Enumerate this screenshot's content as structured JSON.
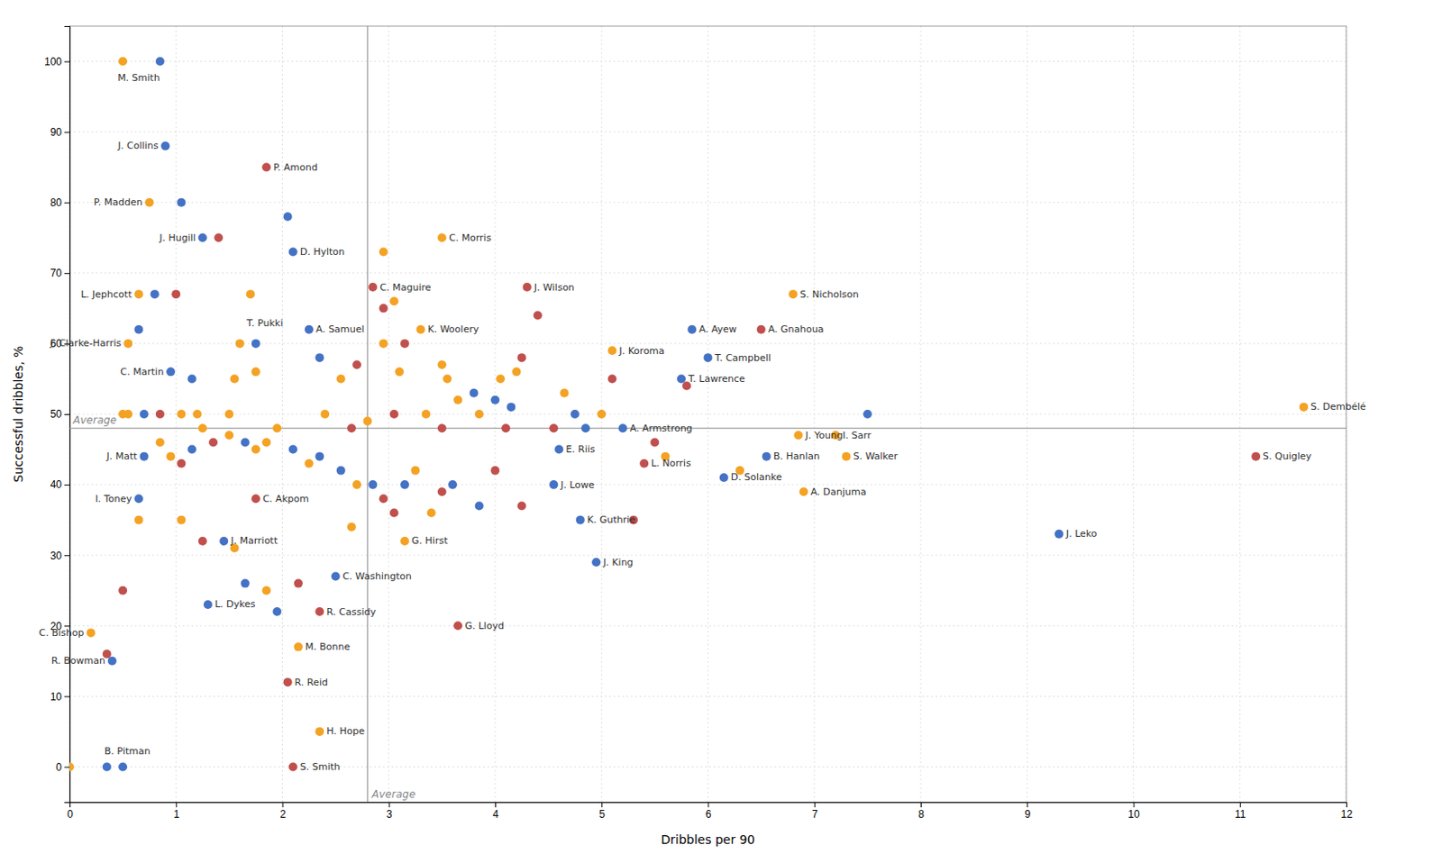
{
  "chart_data": {
    "type": "scatter",
    "xlabel": "Dribbles per 90",
    "ylabel": "Successful dribbles, %",
    "xlim": [
      0,
      12
    ],
    "ylim": [
      -5,
      105
    ],
    "xticks": [
      0,
      1,
      2,
      3,
      4,
      5,
      6,
      7,
      8,
      9,
      10,
      11,
      12
    ],
    "yticks": [
      0,
      10,
      20,
      30,
      40,
      50,
      60,
      70,
      80,
      90,
      100
    ],
    "grid": true,
    "reference_lines": [
      {
        "axis": "y",
        "value": 48,
        "label": "Average"
      },
      {
        "axis": "x",
        "value": 2.8,
        "label": "Average"
      }
    ],
    "x": [
      0.5,
      0.85,
      0.9,
      1.85,
      0.75,
      1.05,
      1.25,
      1.4,
      2.05,
      2.1,
      3.5,
      2.95,
      0.65,
      0.8,
      1.0,
      1.7,
      2.85,
      2.95,
      3.05,
      4.3,
      4.4,
      6.8,
      2.25,
      2.35,
      2.55,
      2.7,
      0.55,
      0.65,
      1.6,
      1.75,
      2.95,
      3.1,
      3.3,
      3.15,
      5.85,
      6.5,
      5.1,
      5.1,
      6.0,
      0.95,
      1.15,
      1.55,
      1.75,
      5.75,
      5.8,
      0.5,
      0.55,
      0.7,
      0.85,
      1.05,
      1.2,
      1.5,
      2.4,
      2.65,
      2.8,
      3.05,
      3.35,
      3.5,
      3.55,
      3.5,
      3.65,
      3.8,
      3.85,
      4.0,
      4.05,
      4.1,
      4.15,
      4.2,
      4.25,
      4.55,
      4.65,
      4.75,
      4.85,
      5.0,
      5.2,
      6.85,
      7.2,
      7.5,
      11.6,
      0.85,
      0.95,
      1.05,
      1.15,
      1.25,
      1.35,
      1.5,
      1.65,
      1.75,
      1.85,
      1.95,
      2.1,
      2.25,
      2.35,
      2.55,
      2.7,
      2.85,
      2.95,
      3.05,
      3.15,
      3.25,
      3.4,
      3.5,
      3.6,
      3.85,
      4.0,
      4.25,
      4.6,
      6.55,
      6.3,
      7.3,
      11.15,
      5.4,
      5.5,
      5.6,
      0.7,
      4.55,
      6.9,
      6.15,
      0.65,
      0.65,
      1.75,
      1.05,
      5.3,
      4.8,
      1.45,
      1.25,
      1.55,
      2.65,
      3.15,
      9.3,
      2.5,
      4.95,
      1.3,
      0.5,
      1.65,
      1.85,
      2.35,
      1.95,
      0.2,
      0.35,
      3.65,
      2.15,
      2.15,
      0.4,
      2.05,
      2.35,
      0.0,
      0.35,
      0.5,
      2.1
    ],
    "values": [
      100,
      100,
      88,
      85,
      80,
      80,
      75,
      75,
      78,
      73,
      75,
      73,
      67,
      67,
      67,
      67,
      68,
      65,
      66,
      68,
      64,
      67,
      62,
      58,
      55,
      57,
      60,
      62,
      60,
      60,
      60,
      56,
      62,
      60,
      62,
      62,
      59,
      55,
      58,
      56,
      55,
      55,
      56,
      55,
      54,
      50,
      50,
      50,
      50,
      50,
      50,
      50,
      50,
      48,
      49,
      50,
      50,
      57,
      55,
      48,
      52,
      53,
      50,
      52,
      55,
      48,
      51,
      56,
      58,
      48,
      53,
      50,
      48,
      50,
      48,
      47,
      47,
      50,
      51,
      46,
      44,
      43,
      45,
      48,
      46,
      47,
      46,
      45,
      46,
      48,
      45,
      43,
      44,
      42,
      40,
      40,
      38,
      36,
      40,
      42,
      36,
      39,
      40,
      37,
      42,
      37,
      45,
      44,
      42,
      44,
      44,
      43,
      46,
      44,
      44,
      40,
      39,
      41,
      38,
      35,
      38,
      35,
      35,
      35,
      32,
      32,
      31,
      34,
      32,
      33,
      27,
      29,
      23,
      25,
      26,
      25,
      22,
      22,
      19,
      16,
      20,
      26,
      17,
      15,
      12,
      5,
      0,
      0,
      0,
      0
    ],
    "colors": [
      "#F4A223",
      "#4472C4",
      "#4472C4",
      "#C0504D",
      "#F4A223",
      "#4472C4",
      "#4472C4",
      "#C0504D",
      "#4472C4",
      "#4472C4",
      "#F4A223",
      "#F4A223",
      "#F4A223",
      "#4472C4",
      "#C0504D",
      "#F4A223",
      "#C0504D",
      "#C0504D",
      "#F4A223",
      "#C0504D",
      "#C0504D",
      "#F4A223",
      "#4472C4",
      "#4472C4",
      "#F4A223",
      "#C0504D",
      "#F4A223",
      "#4472C4",
      "#F4A223",
      "#4472C4",
      "#F4A223",
      "#F4A223",
      "#F4A223",
      "#C0504D",
      "#4472C4",
      "#C0504D",
      "#F4A223",
      "#C0504D",
      "#4472C4",
      "#4472C4",
      "#4472C4",
      "#F4A223",
      "#F4A223",
      "#4472C4",
      "#C0504D",
      "#F4A223",
      "#F4A223",
      "#4472C4",
      "#C0504D",
      "#F4A223",
      "#F4A223",
      "#F4A223",
      "#F4A223",
      "#C0504D",
      "#F4A223",
      "#C0504D",
      "#F4A223",
      "#F4A223",
      "#F4A223",
      "#C0504D",
      "#F4A223",
      "#4472C4",
      "#F4A223",
      "#4472C4",
      "#F4A223",
      "#C0504D",
      "#4472C4",
      "#F4A223",
      "#C0504D",
      "#C0504D",
      "#F4A223",
      "#4472C4",
      "#4472C4",
      "#F4A223",
      "#4472C4",
      "#F4A223",
      "#F4A223",
      "#4472C4",
      "#F4A223",
      "#F4A223",
      "#F4A223",
      "#C0504D",
      "#4472C4",
      "#F4A223",
      "#C0504D",
      "#F4A223",
      "#4472C4",
      "#F4A223",
      "#F4A223",
      "#F4A223",
      "#4472C4",
      "#F4A223",
      "#4472C4",
      "#4472C4",
      "#F4A223",
      "#4472C4",
      "#C0504D",
      "#C0504D",
      "#4472C4",
      "#F4A223",
      "#F4A223",
      "#C0504D",
      "#4472C4",
      "#4472C4",
      "#C0504D",
      "#C0504D",
      "#4472C4",
      "#4472C4",
      "#F4A223",
      "#F4A223",
      "#C0504D",
      "#C0504D",
      "#C0504D",
      "#F4A223",
      "#4472C4",
      "#4472C4",
      "#F4A223",
      "#4472C4",
      "#4472C4",
      "#F4A223",
      "#C0504D",
      "#F4A223",
      "#C0504D",
      "#4472C4",
      "#4472C4",
      "#C0504D",
      "#F4A223",
      "#F4A223",
      "#F4A223",
      "#4472C4",
      "#4472C4",
      "#4472C4",
      "#4472C4",
      "#C0504D",
      "#4472C4",
      "#F4A223",
      "#C0504D",
      "#4472C4",
      "#F4A223",
      "#C0504D",
      "#C0504D",
      "#C0504D",
      "#F4A223",
      "#4472C4",
      "#C0504D",
      "#F4A223",
      "#F4A223",
      "#4472C4",
      "#4472C4",
      "#C0504D"
    ],
    "labels": [
      "M. Smith",
      null,
      "J. Collins",
      "P. Amond",
      "P. Madden",
      null,
      "J. Hugill",
      null,
      null,
      "D. Hylton",
      "C. Morris",
      null,
      "L. Jephcott",
      null,
      null,
      null,
      "C. Maguire",
      null,
      null,
      "J. Wilson",
      null,
      "S. Nicholson",
      "A. Samuel",
      null,
      null,
      null,
      "J. Clarke-Harris",
      null,
      "T. Pukki",
      null,
      null,
      null,
      "K. Woolery",
      null,
      "A. Ayew",
      "A. Gnahoua",
      "J. Koroma",
      null,
      "T. Campbell",
      "C. Martin",
      null,
      null,
      null,
      "T. Lawrence",
      null,
      null,
      null,
      null,
      null,
      null,
      null,
      null,
      null,
      null,
      null,
      null,
      null,
      null,
      null,
      null,
      null,
      null,
      null,
      null,
      null,
      null,
      null,
      null,
      null,
      null,
      null,
      null,
      null,
      null,
      "A. Armstrong",
      "J. Young",
      "I. Sarr",
      null,
      "S. Dembélé",
      null,
      null,
      null,
      null,
      null,
      null,
      null,
      null,
      null,
      null,
      null,
      null,
      null,
      null,
      null,
      null,
      null,
      null,
      null,
      null,
      null,
      null,
      null,
      null,
      null,
      null,
      null,
      "E. Riis",
      "B. Hanlan",
      null,
      "S. Walker",
      "S. Quigley",
      "L. Norris",
      null,
      null,
      "J. Matt",
      "J. Lowe",
      "A. Danjuma",
      "D. Solanke",
      "I. Toney",
      null,
      "C. Akpom",
      null,
      null,
      "K. Guthrie",
      "J. Marriott",
      null,
      null,
      null,
      "G. Hirst",
      "J. Leko",
      "C. Washington",
      "J. King",
      "L. Dykes",
      null,
      null,
      null,
      "R. Cassidy",
      null,
      "C. Bishop",
      null,
      "G. Lloyd",
      null,
      "M. Bonne",
      "R. Bowman",
      "R. Reid",
      "H. Hope",
      "B. Pitman",
      null,
      null,
      "S. Smith"
    ]
  }
}
